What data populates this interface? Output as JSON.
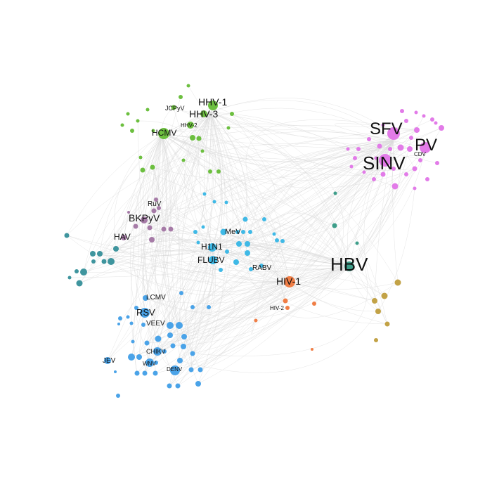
{
  "colors": {
    "alphavirus": "#e27be8",
    "herpes": "#6cbf3f",
    "hbv": "#3e9e8a",
    "hiv": "#f07e46",
    "polyoma": "#a67ba7",
    "flu": "#3fb9e6",
    "teal": "#3f959e",
    "flavi": "#4aa3e8",
    "mustard": "#c2a246",
    "edge": "#d9d9d9"
  },
  "labels": [
    {
      "id": "sfv",
      "text": "SFV"
    },
    {
      "id": "pv",
      "text": "PV"
    },
    {
      "id": "sinv",
      "text": "SINV"
    },
    {
      "id": "cdv",
      "text": "CDV"
    },
    {
      "id": "hbv",
      "text": "HBV"
    },
    {
      "id": "hhv1",
      "text": "HHV-1"
    },
    {
      "id": "hhv3",
      "text": "HHV-3"
    },
    {
      "id": "jcpyv",
      "text": "JCPyV"
    },
    {
      "id": "hhv2",
      "text": "HHV-2"
    },
    {
      "id": "hcmv",
      "text": "HCMV"
    },
    {
      "id": "ruv",
      "text": "RuV"
    },
    {
      "id": "bkpyv",
      "text": "BKPyV"
    },
    {
      "id": "hav",
      "text": "HAV"
    },
    {
      "id": "mev",
      "text": "MeV"
    },
    {
      "id": "h1n1",
      "text": "H1N1"
    },
    {
      "id": "flubv",
      "text": "FLUBV"
    },
    {
      "id": "rabv",
      "text": "RABV"
    },
    {
      "id": "hiv1",
      "text": "HIV-1"
    },
    {
      "id": "hiv2",
      "text": "HIV-2"
    },
    {
      "id": "lcmv",
      "text": "LCMV"
    },
    {
      "id": "rsv",
      "text": "RSV"
    },
    {
      "id": "veev",
      "text": "VEEV"
    },
    {
      "id": "chikv",
      "text": "CHIKV"
    },
    {
      "id": "jev",
      "text": "JEV"
    },
    {
      "id": "wnv",
      "text": "WNV"
    },
    {
      "id": "denv",
      "text": "DENV"
    }
  ]
}
